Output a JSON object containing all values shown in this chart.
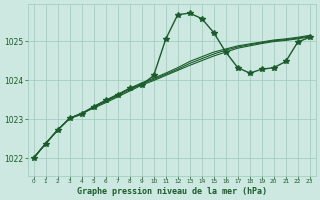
{
  "title": "Graphe pression niveau de la mer (hPa)",
  "xlabel_ticks": [
    0,
    1,
    2,
    3,
    4,
    5,
    6,
    7,
    8,
    9,
    10,
    11,
    12,
    13,
    14,
    15,
    16,
    17,
    18,
    19,
    20,
    21,
    22,
    23
  ],
  "yticks": [
    1022,
    1023,
    1024,
    1025
  ],
  "ylim": [
    1021.55,
    1025.95
  ],
  "xlim": [
    -0.5,
    23.5
  ],
  "bg_color": "#cce8e0",
  "grid_color": "#99ccbb",
  "line_color": "#1a5c2a",
  "series1": [
    1022.0,
    1022.37,
    1022.72,
    1023.02,
    1023.12,
    1023.32,
    1023.48,
    1023.63,
    1023.79,
    1023.88,
    1024.12,
    1025.05,
    1025.68,
    1025.72,
    1025.58,
    1025.22,
    1024.72,
    1024.32,
    1024.18,
    1024.28,
    1024.32,
    1024.48,
    1024.98,
    1025.1
  ],
  "series2": [
    1022.0,
    1022.37,
    1022.72,
    1023.02,
    1023.15,
    1023.32,
    1023.48,
    1023.63,
    1023.79,
    1023.93,
    1024.05,
    1024.18,
    1024.32,
    1024.48,
    1024.6,
    1024.72,
    1024.8,
    1024.88,
    1024.93,
    1024.98,
    1025.03,
    1025.06,
    1025.1,
    1025.15
  ],
  "series3": [
    1022.0,
    1022.37,
    1022.72,
    1023.02,
    1023.15,
    1023.3,
    1023.45,
    1023.6,
    1023.75,
    1023.9,
    1024.02,
    1024.15,
    1024.28,
    1024.43,
    1024.55,
    1024.67,
    1024.77,
    1024.85,
    1024.91,
    1024.96,
    1025.01,
    1025.04,
    1025.08,
    1025.13
  ],
  "series4": [
    1022.0,
    1022.37,
    1022.72,
    1023.02,
    1023.15,
    1023.28,
    1023.42,
    1023.57,
    1023.72,
    1023.87,
    1023.99,
    1024.12,
    1024.25,
    1024.38,
    1024.5,
    1024.62,
    1024.72,
    1024.82,
    1024.88,
    1024.94,
    1024.99,
    1025.02,
    1025.06,
    1025.11
  ],
  "marker_size": 4,
  "linewidth1": 1.0,
  "linewidth2": 0.8
}
